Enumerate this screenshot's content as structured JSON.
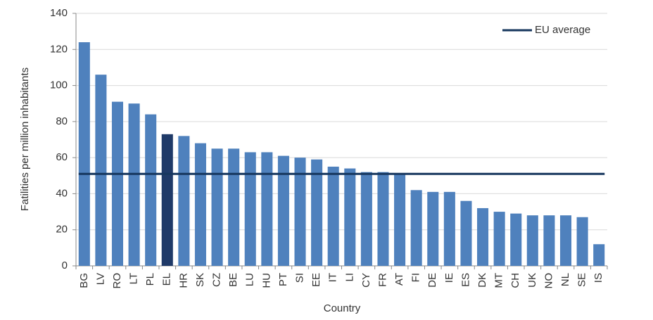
{
  "chart_data": {
    "type": "bar",
    "x_label": "Country",
    "y_label": "Fatilities per million inhabitants",
    "categories": [
      "BG",
      "LV",
      "RO",
      "LT",
      "PL",
      "EL",
      "HR",
      "SK",
      "CZ",
      "BE",
      "LU",
      "HU",
      "PT",
      "SI",
      "EE",
      "IT",
      "LI",
      "CY",
      "FR",
      "AT",
      "FI",
      "DE",
      "IE",
      "ES",
      "DK",
      "MT",
      "CH",
      "UK",
      "NO",
      "NL",
      "SE",
      "IS"
    ],
    "values": [
      124,
      106,
      91,
      90,
      84,
      73,
      72,
      68,
      65,
      65,
      63,
      63,
      61,
      60,
      59,
      55,
      54,
      52,
      52,
      51,
      42,
      41,
      41,
      36,
      32,
      30,
      29,
      28,
      28,
      28,
      27,
      12
    ],
    "colors": [
      "#4f81bd",
      "#4f81bd",
      "#4f81bd",
      "#4f81bd",
      "#4f81bd",
      "#1f3a68",
      "#4f81bd",
      "#4f81bd",
      "#4f81bd",
      "#4f81bd",
      "#4f81bd",
      "#4f81bd",
      "#4f81bd",
      "#4f81bd",
      "#4f81bd",
      "#4f81bd",
      "#4f81bd",
      "#4f81bd",
      "#4f81bd",
      "#4f81bd",
      "#4f81bd",
      "#4f81bd",
      "#4f81bd",
      "#4f81bd",
      "#4f81bd",
      "#4f81bd",
      "#4f81bd",
      "#4f81bd",
      "#4f81bd",
      "#4f81bd",
      "#4f81bd",
      "#4f81bd"
    ],
    "reference_line": {
      "name": "EU average",
      "value": 51,
      "color": "#17375e"
    },
    "ylim": [
      0,
      140
    ],
    "yticks": [
      0,
      20,
      40,
      60,
      80,
      100,
      120,
      140
    ],
    "grid": true,
    "legend": "top-right"
  }
}
